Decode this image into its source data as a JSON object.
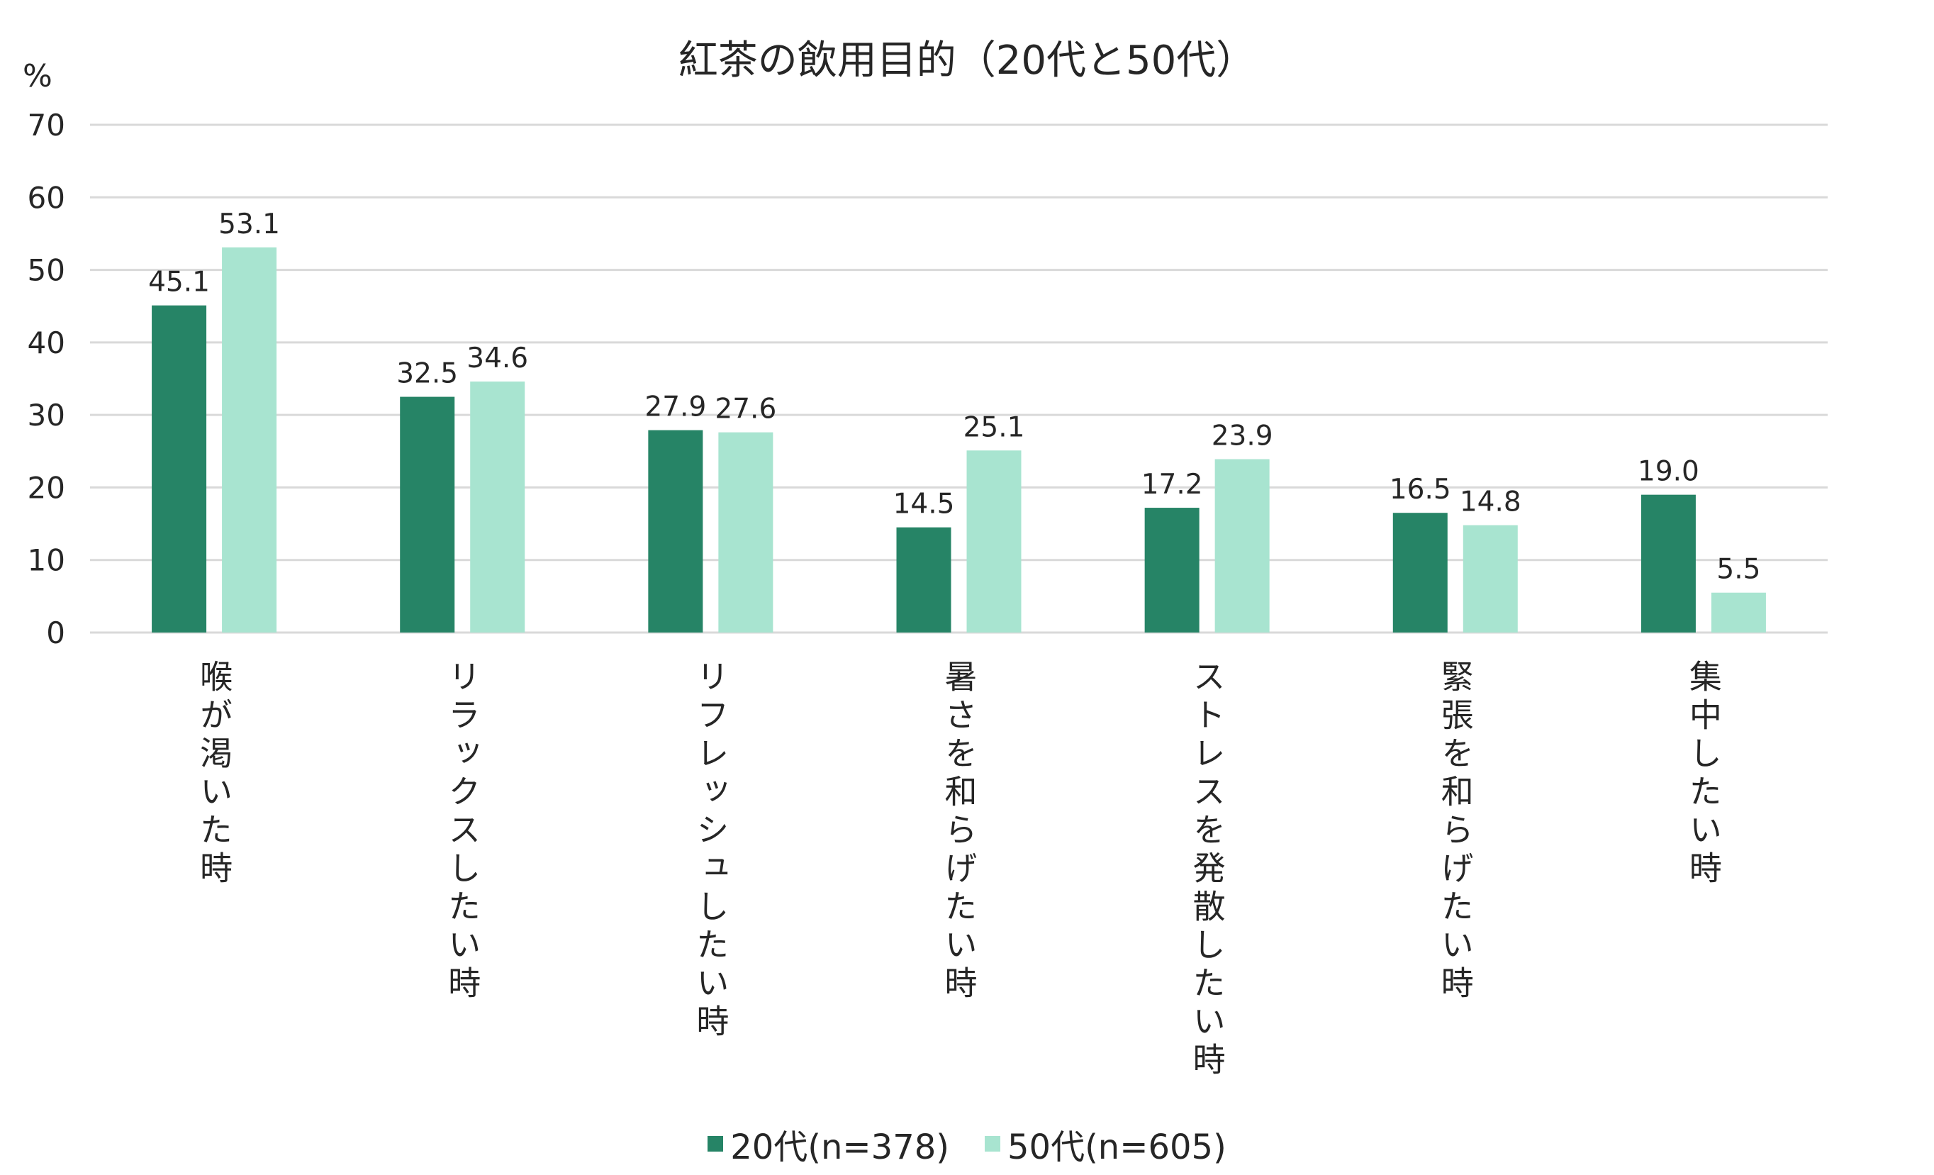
{
  "chart_data": {
    "type": "bar",
    "title": "紅茶の飲用目的（20代と50代）",
    "ylabel": "%",
    "xlabel": "",
    "ylim": [
      0,
      70
    ],
    "yticks": [
      0,
      10,
      20,
      30,
      40,
      50,
      60,
      70
    ],
    "grid": true,
    "legend_placement": "bottom",
    "categories": [
      "喉が渇いた時",
      "リラックスしたい時",
      "リフレッシュしたい時",
      "暑さを和らげたい時",
      "ストレスを発散したい時",
      "緊張を和らげたい時",
      "集中したい時"
    ],
    "series": [
      {
        "name": "20代(n=378)",
        "color": "#268466",
        "values": [
          45.1,
          32.5,
          27.9,
          14.5,
          17.2,
          16.5,
          19.0
        ],
        "labels": [
          "45.1",
          "32.5",
          "27.9",
          "14.5",
          "17.2",
          "16.5",
          "19.0"
        ]
      },
      {
        "name": "50代(n=605)",
        "color": "#a8e4d0",
        "values": [
          53.1,
          34.6,
          27.6,
          25.1,
          23.9,
          14.8,
          5.5
        ],
        "labels": [
          "53.1",
          "34.6",
          "27.6",
          "25.1",
          "23.9",
          "14.8",
          "5.5"
        ]
      }
    ],
    "grid_color": "#d9d9d9"
  }
}
